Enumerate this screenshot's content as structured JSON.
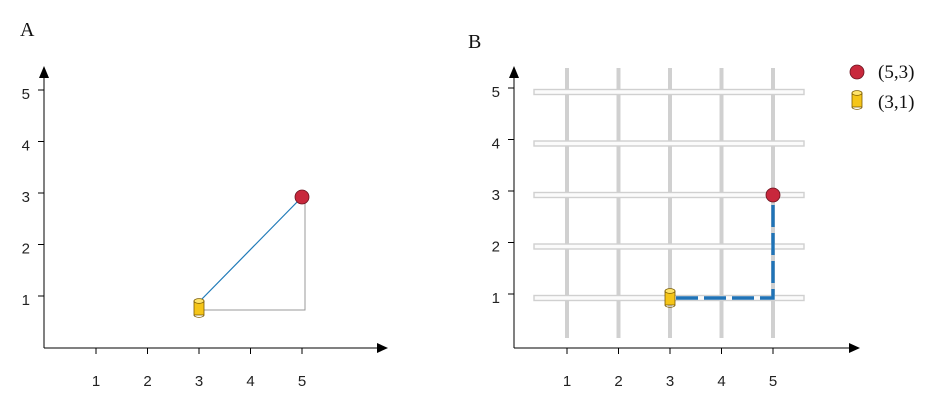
{
  "panels": [
    {
      "label": "A",
      "x_ticks": [
        "1",
        "2",
        "3",
        "4",
        "5"
      ],
      "y_ticks": [
        "1",
        "2",
        "3",
        "4",
        "5"
      ],
      "grid": false,
      "path_style": "straight-line-with-right-angle-guide"
    },
    {
      "label": "B",
      "x_ticks": [
        "1",
        "2",
        "3",
        "4",
        "5"
      ],
      "y_ticks": [
        "1",
        "2",
        "3",
        "4",
        "5"
      ],
      "grid": true,
      "path_style": "dashed-manhattan"
    }
  ],
  "points": {
    "target": {
      "coords": [
        5,
        3
      ],
      "label": "(5,3)",
      "marker": "red-circle",
      "color": "#c8283c"
    },
    "origin": {
      "coords": [
        3,
        1
      ],
      "label": "(3,1)",
      "marker": "yellow-cylinder",
      "color": "#f5c518"
    }
  },
  "legend": {
    "placement": "top-right",
    "items": [
      {
        "label": "(5,3)",
        "marker": "red-circle",
        "color": "#c8283c"
      },
      {
        "label": "(3,1)",
        "marker": "yellow-cylinder",
        "color": "#f5c518"
      }
    ]
  },
  "colors": {
    "euclidean_line": "#1f7ab8",
    "manhattan_dash": "#1f73b7",
    "guide_line": "#999999",
    "grid_line": "#d0d0d0"
  }
}
